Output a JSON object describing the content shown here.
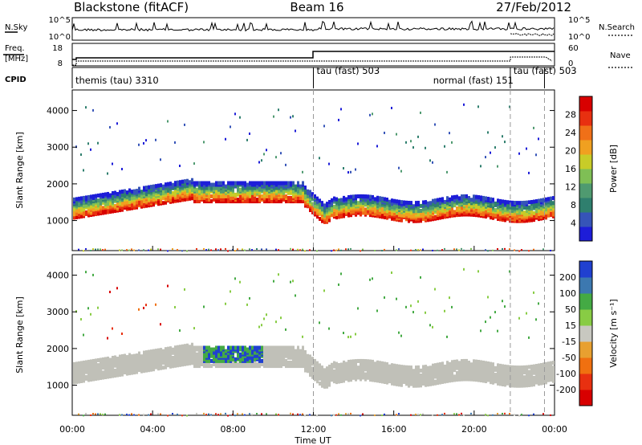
{
  "header": {
    "station": "Blackstone (fitACF)",
    "beam": "Beam 16",
    "date": "27/Feb/2012"
  },
  "noise_panel": {
    "left_label": "N.Sky",
    "left_ticks": [
      "10^5",
      "10^0"
    ],
    "right_ticks": [
      "10^5",
      "10^0"
    ],
    "right_label": "N.Search"
  },
  "freq_panel": {
    "left_label_1": "Freq.",
    "left_label_2": "[MHz]",
    "left_ticks": [
      "18",
      "8"
    ],
    "right_ticks": [
      "60",
      "0"
    ],
    "right_label": "Nave"
  },
  "cpid_panel": {
    "label": "CPID",
    "modes": [
      {
        "text": "themis (tau) 3310",
        "start_hour": 0
      },
      {
        "text": "tau (fast) 503",
        "start_hour": 12
      },
      {
        "text": "normal (fast) 151",
        "start_hour": 17.8
      },
      {
        "text": "tau (fast) 503",
        "start_hour": 21.8
      }
    ],
    "switch_hours": [
      12,
      21.8,
      23.5
    ]
  },
  "chart_data": [
    {
      "type": "heatmap",
      "name": "power",
      "ylabel": "Slant Range [km]",
      "xlabel": "Time UT",
      "x_ticks": [
        "00:00",
        "04:00",
        "08:00",
        "12:00",
        "16:00",
        "20:00",
        "00:00"
      ],
      "xlim_hours": [
        0,
        24
      ],
      "y_ticks": [
        1000,
        2000,
        3000,
        4000
      ],
      "ylim": [
        180,
        4560
      ],
      "colorbar": {
        "label": "Power [dB]",
        "ticks": [
          4,
          8,
          12,
          16,
          20,
          24,
          28
        ],
        "range": [
          0,
          32
        ],
        "colors": [
          "#1d1dd8",
          "#3654b8",
          "#2f7f6e",
          "#4f9a70",
          "#7fbf55",
          "#c8cc28",
          "#f0a020",
          "#f07018",
          "#e83010",
          "#d80000"
        ]
      }
    },
    {
      "type": "heatmap",
      "name": "velocity",
      "ylabel": "Slant Range [km]",
      "xlabel": "Time UT",
      "x_ticks": [
        "00:00",
        "04:00",
        "08:00",
        "12:00",
        "16:00",
        "20:00",
        "00:00"
      ],
      "xlim_hours": [
        0,
        24
      ],
      "y_ticks": [
        1000,
        2000,
        3000,
        4000
      ],
      "ylim": [
        180,
        4560
      ],
      "colorbar": {
        "label": "Velocity [m s⁻¹]",
        "ticks": [
          "200",
          "100",
          "50",
          "15",
          "-15",
          "-50",
          "-100",
          "-200"
        ],
        "colors": [
          "#2040d0",
          "#3c78b0",
          "#44aa44",
          "#88cc44",
          "#c8c8c0",
          "#e8a030",
          "#f07010",
          "#e83010",
          "#d80000"
        ]
      },
      "ground_scatter_color": "#c0c0b8"
    }
  ]
}
